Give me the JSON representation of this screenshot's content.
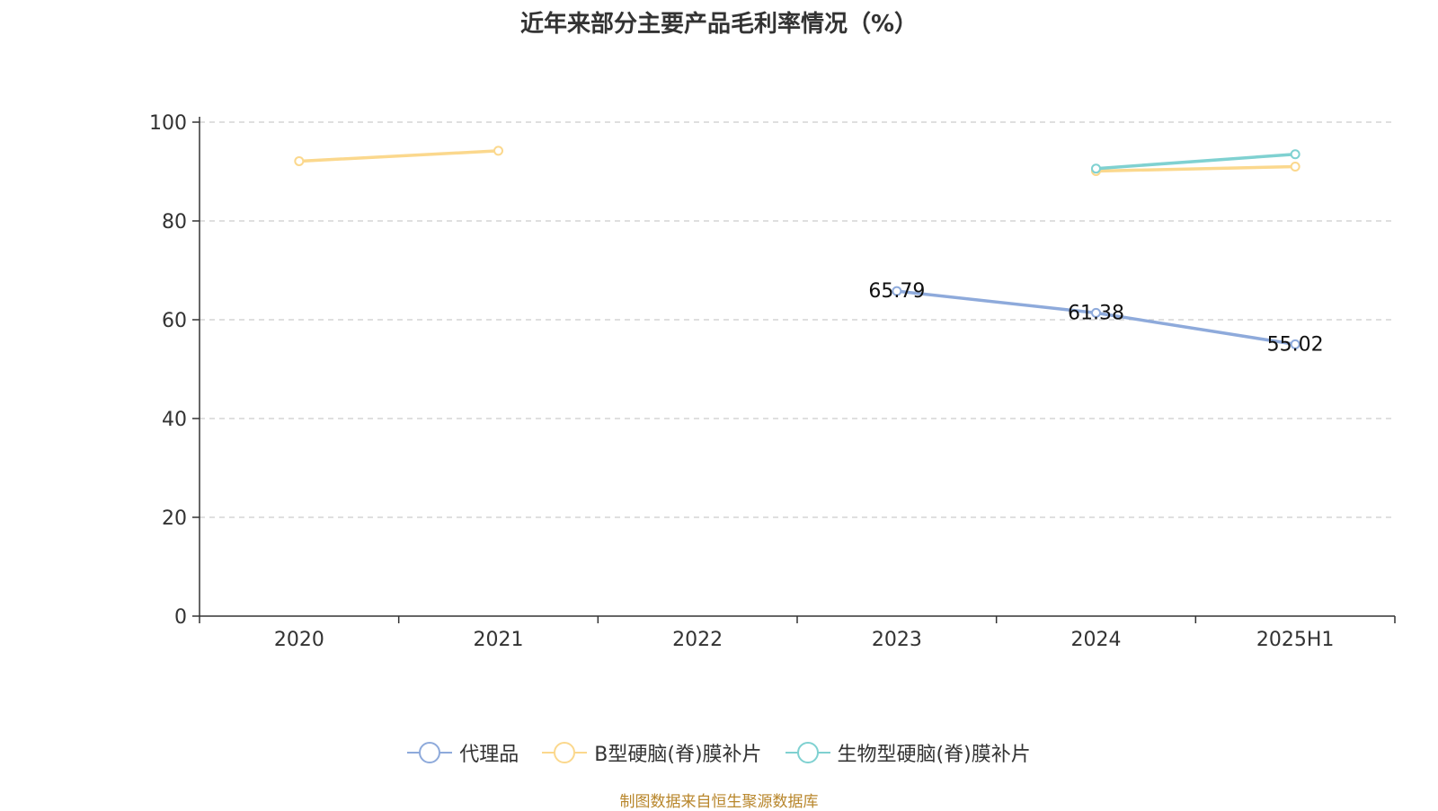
{
  "chart_data": {
    "type": "line",
    "title": "近年来部分主要产品毛利率情况（%）",
    "categories": [
      "2020",
      "2021",
      "2022",
      "2023",
      "2024",
      "2025H1"
    ],
    "ylim": [
      0,
      100
    ],
    "yticks": [
      0,
      20,
      40,
      60,
      80,
      100
    ],
    "grid": true,
    "legend_position": "bottom",
    "series": [
      {
        "name": "代理品",
        "color": "#8eaadb",
        "values": [
          null,
          null,
          null,
          65.79,
          61.38,
          55.02
        ],
        "labels": [
          "",
          "",
          "",
          "65.79",
          "61.38",
          "55.02"
        ]
      },
      {
        "name": "B型硬脑(脊)膜补片",
        "color": "#fbd88d",
        "values": [
          92.1,
          94.2,
          null,
          null,
          90.1,
          91.0
        ],
        "labels": [
          "",
          "",
          "",
          "",
          "",
          ""
        ]
      },
      {
        "name": "生物型硬脑(脊)膜补片",
        "color": "#7fd1d1",
        "values": [
          null,
          null,
          null,
          null,
          90.6,
          93.5
        ],
        "labels": [
          "",
          "",
          "",
          "",
          "",
          ""
        ]
      }
    ]
  },
  "source": "制图数据来自恒生聚源数据库"
}
